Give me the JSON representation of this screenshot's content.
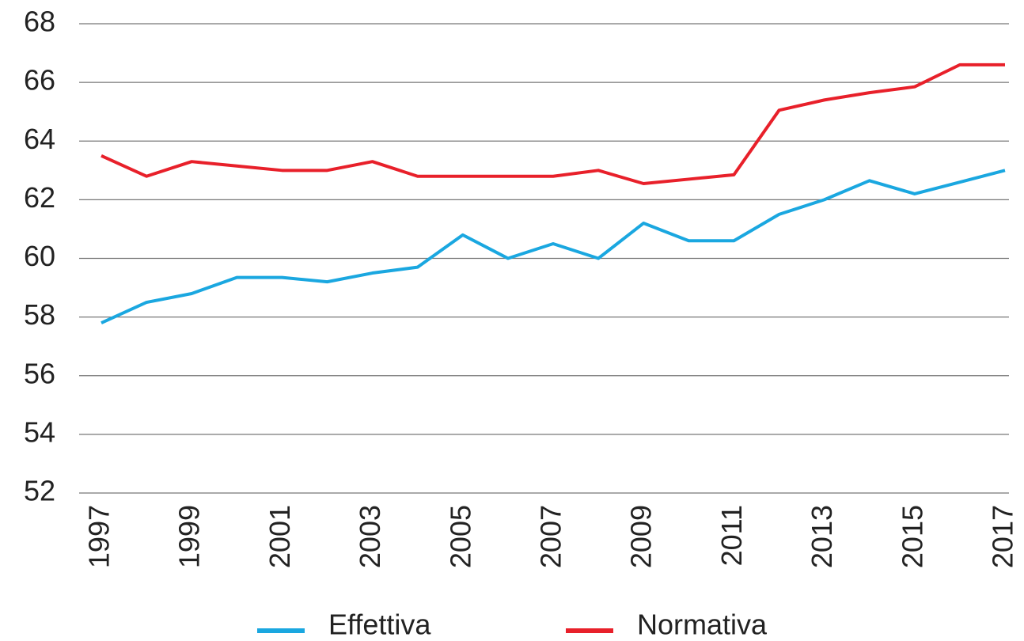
{
  "chart_data": {
    "type": "line",
    "x": [
      1997,
      1998,
      1999,
      2000,
      2001,
      2002,
      2003,
      2004,
      2005,
      2006,
      2007,
      2008,
      2009,
      2010,
      2011,
      2012,
      2013,
      2014,
      2015,
      2016,
      2017
    ],
    "series": [
      {
        "name": "Effettiva",
        "color": "#1aa7e0",
        "values": [
          57.8,
          58.5,
          58.8,
          59.35,
          59.35,
          59.2,
          59.5,
          59.7,
          60.8,
          60.0,
          60.5,
          60.0,
          61.2,
          60.6,
          60.6,
          61.5,
          62.0,
          62.65,
          62.2,
          62.6,
          63.0
        ]
      },
      {
        "name": "Normativa",
        "color": "#e8202a",
        "values": [
          63.5,
          62.8,
          63.3,
          63.15,
          63.0,
          63.0,
          63.3,
          62.8,
          62.8,
          62.8,
          62.8,
          63.0,
          62.55,
          62.7,
          62.85,
          65.05,
          65.4,
          65.65,
          65.85,
          66.6,
          66.6
        ]
      }
    ],
    "xlim": [
      1997,
      2017
    ],
    "xticks": [
      1997,
      1999,
      2001,
      2003,
      2005,
      2007,
      2009,
      2011,
      2013,
      2015,
      2017
    ],
    "ylim": [
      52,
      68
    ],
    "yticks": [
      52,
      54,
      56,
      58,
      60,
      62,
      64,
      66,
      68
    ],
    "grid": true,
    "legend": "bottom"
  }
}
